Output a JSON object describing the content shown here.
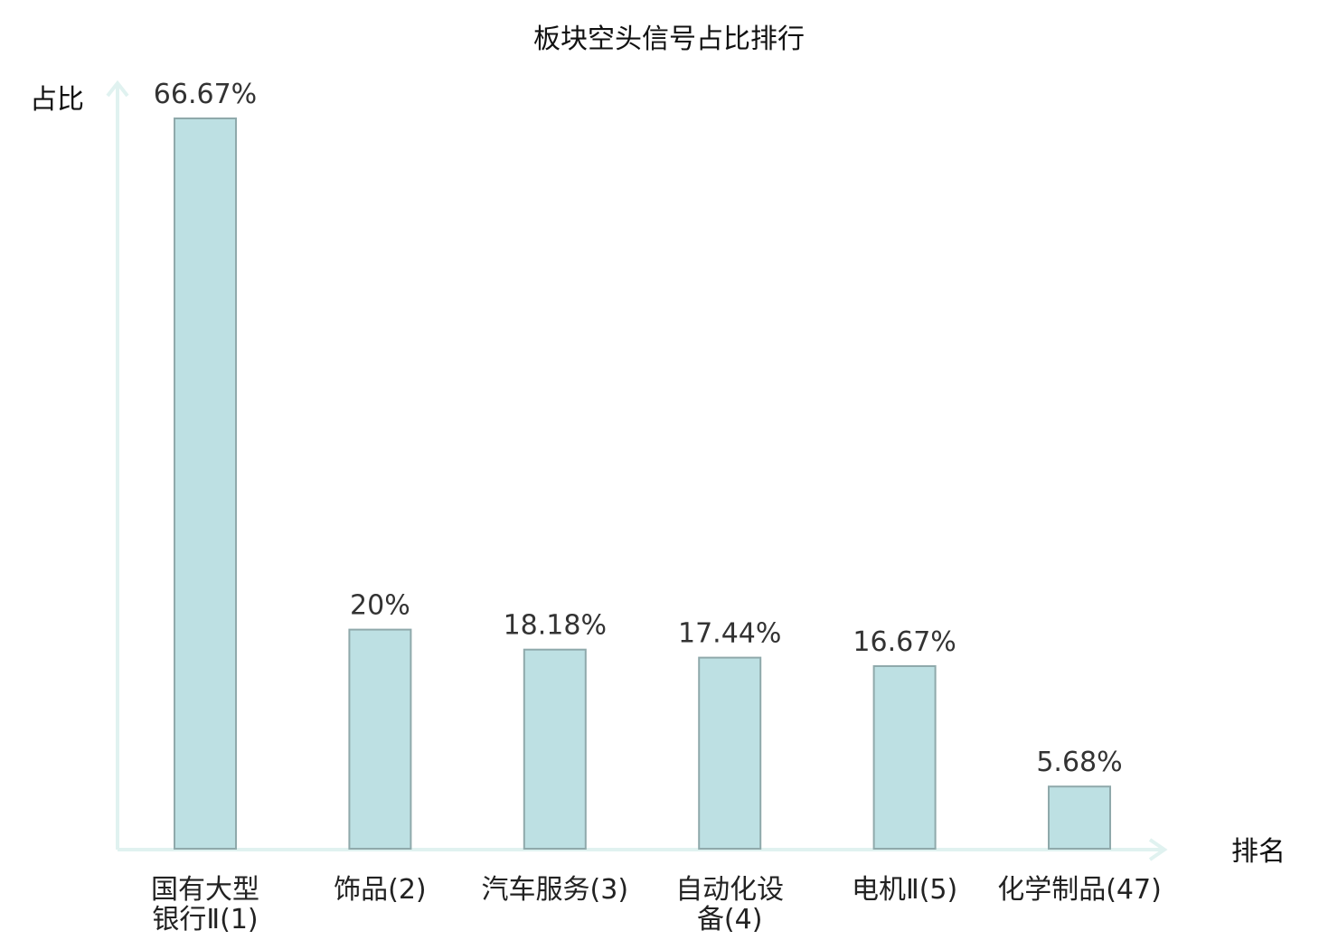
{
  "chart_data": {
    "type": "bar",
    "title": "板块空头信号占比排行",
    "ylabel": "占比",
    "xlabel": "排名",
    "ylim": [
      0,
      70
    ],
    "grid": false,
    "highlight_color": "#dd0000",
    "bar_color": "#bde0e3",
    "categories": [
      {
        "lines": [
          "国有大型",
          "银行Ⅱ(1)"
        ],
        "highlight": false
      },
      {
        "lines": [
          "饰品(2)"
        ],
        "highlight": false
      },
      {
        "lines": [
          "汽车服务(3)"
        ],
        "highlight": false
      },
      {
        "lines": [
          "自动化设",
          "备(4)"
        ],
        "highlight": false
      },
      {
        "lines": [
          "电机Ⅱ(5)"
        ],
        "highlight": false
      },
      {
        "lines": [
          "化学制品(47)"
        ],
        "highlight": true
      }
    ],
    "values": [
      66.67,
      20,
      18.18,
      17.44,
      16.67,
      5.68
    ],
    "value_labels": [
      "66.67%",
      "20%",
      "18.18%",
      "17.44%",
      "16.67%",
      "5.68%"
    ]
  }
}
